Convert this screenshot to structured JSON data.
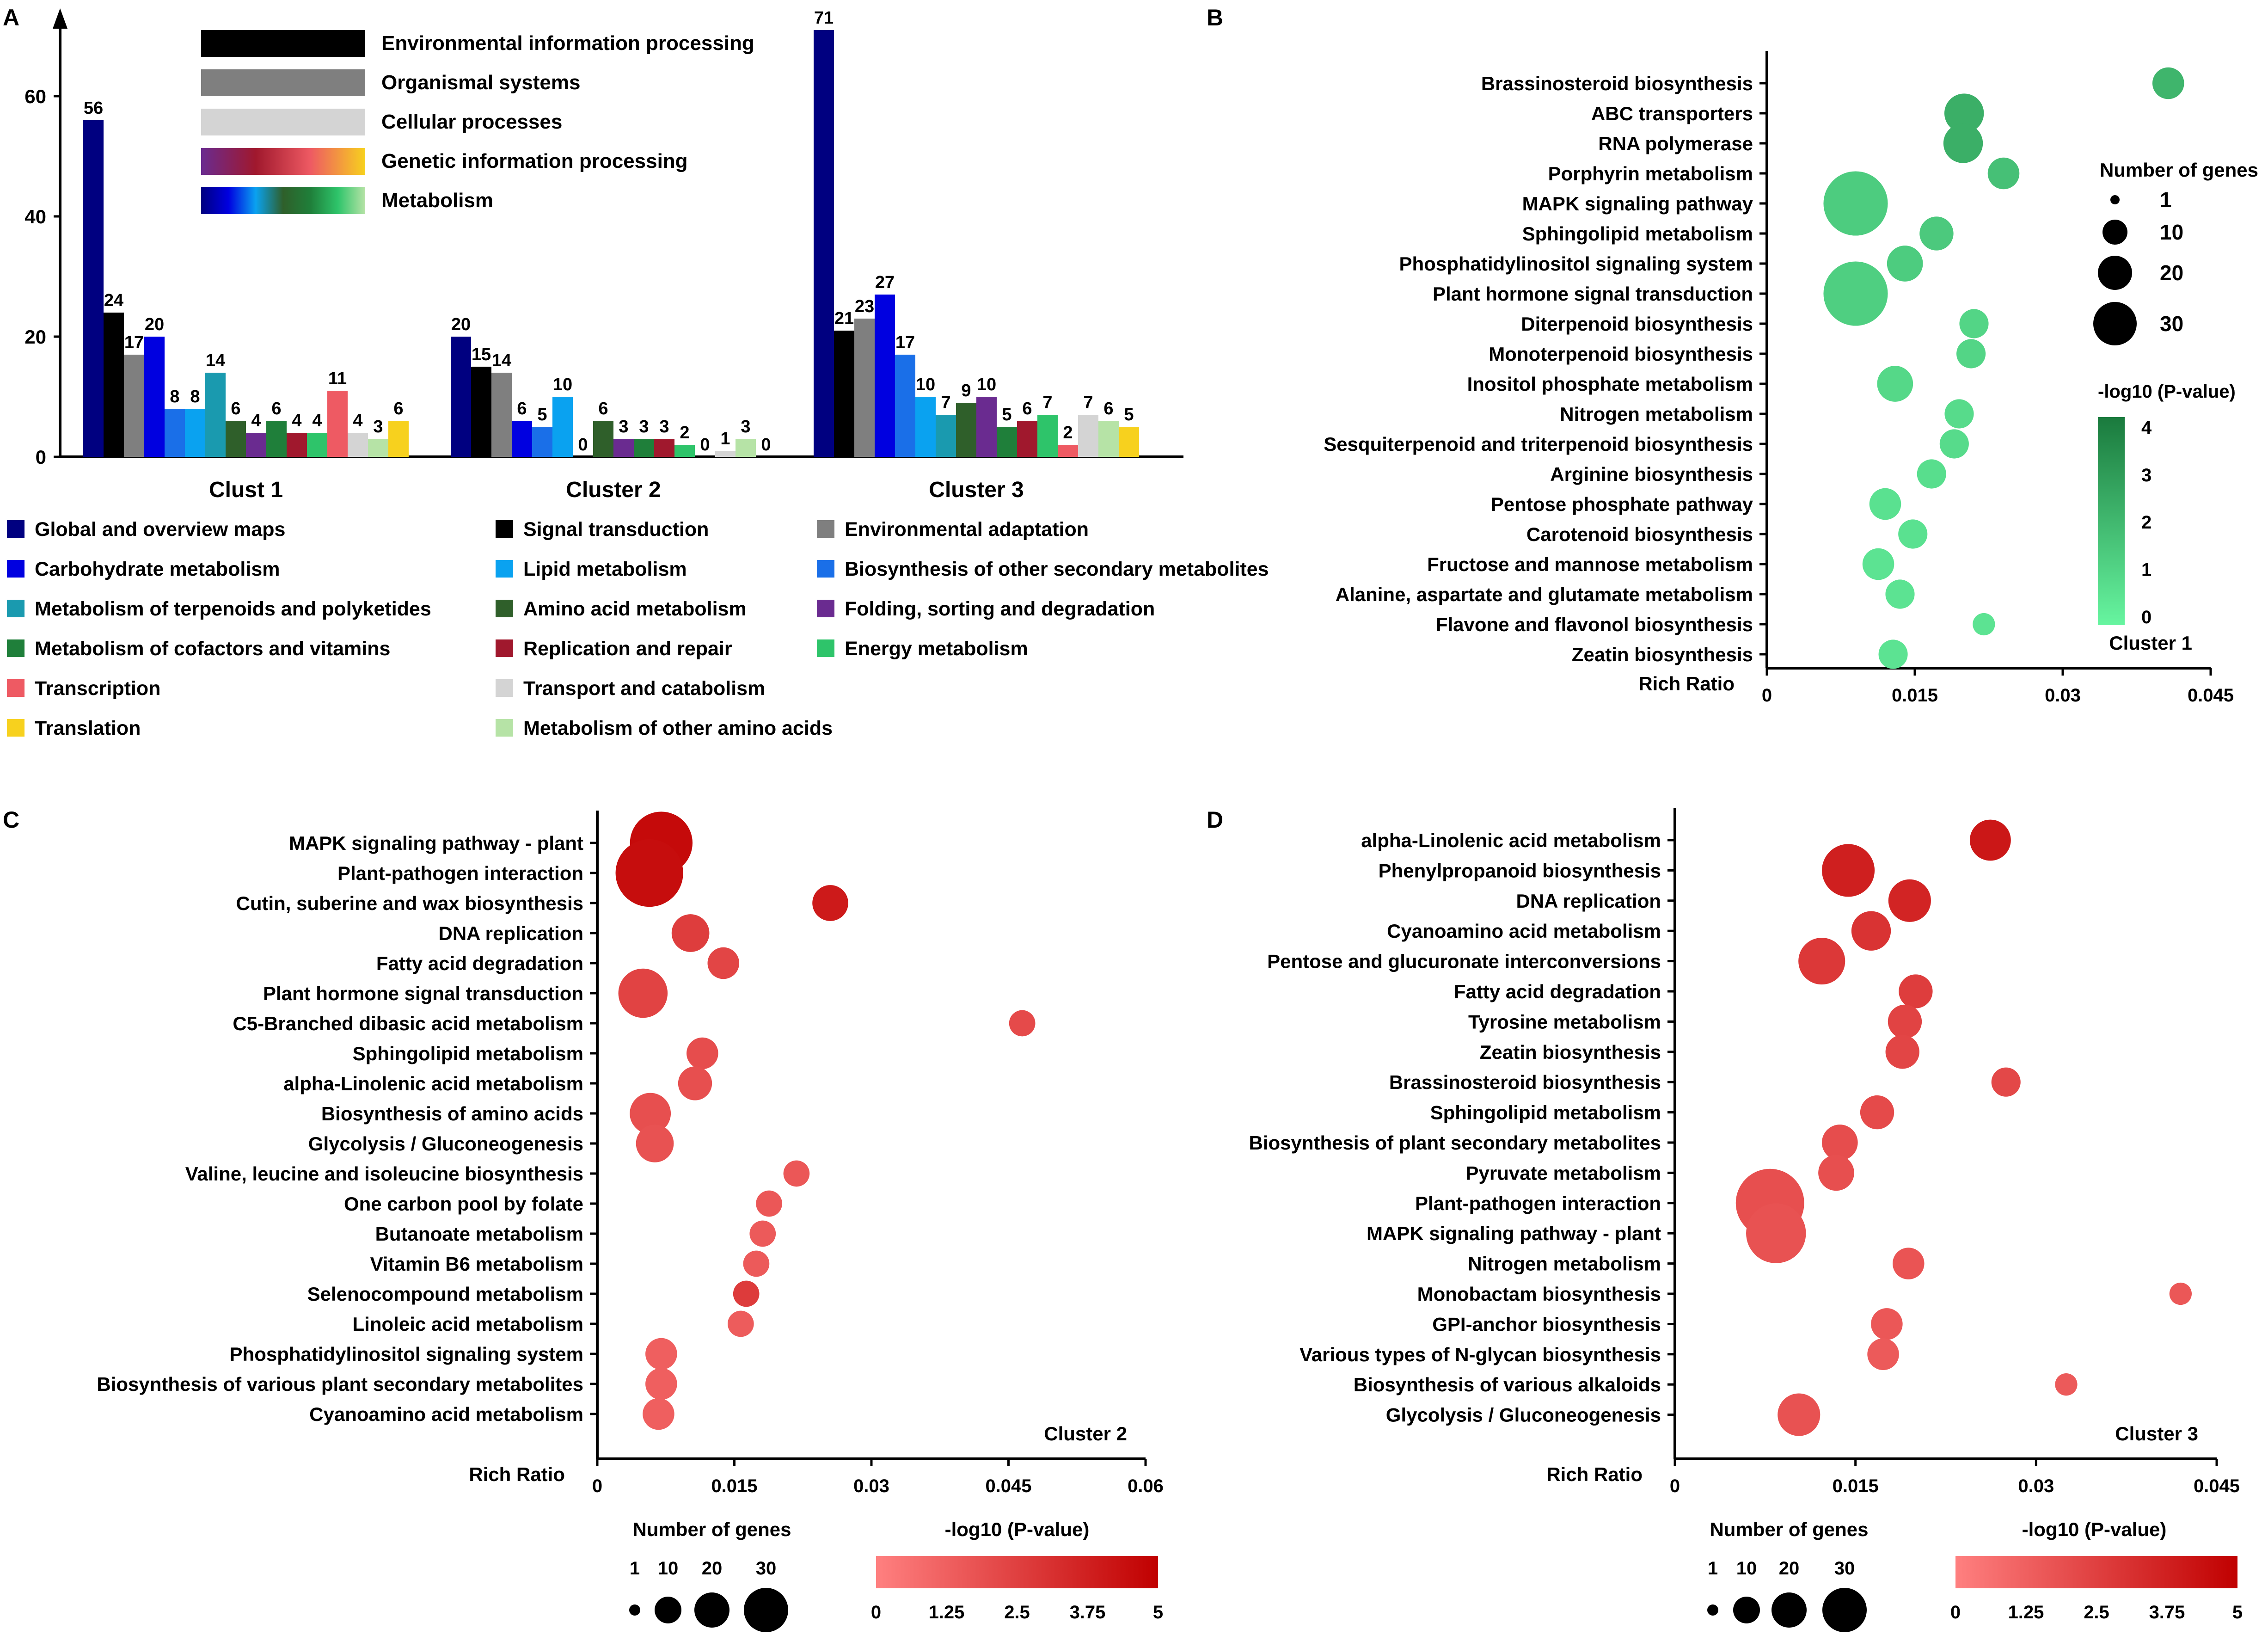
{
  "chart_data": [
    {
      "panel": "A",
      "type": "bar",
      "ylim": [
        0,
        72
      ],
      "yticks": [
        "0",
        "20",
        "40",
        "60"
      ],
      "categories": [
        "Clust 1",
        "Cluster 2",
        "Cluster 3"
      ],
      "series": [
        {
          "name": "Global and overview maps",
          "color": "#000080",
          "values": [
            56,
            20,
            71
          ]
        },
        {
          "name": "Signal transduction",
          "color": "#000000",
          "values": [
            24,
            15,
            21
          ]
        },
        {
          "name": "Environmental adaptation",
          "color": "#7f7f7f",
          "values": [
            17,
            14,
            23
          ]
        },
        {
          "name": "Carbohydrate metabolism",
          "color": "#0000e0",
          "values": [
            20,
            6,
            27
          ]
        },
        {
          "name": "Biosynthesis of other secondary metabolites",
          "color": "#1a6fe8",
          "values": [
            8,
            5,
            17
          ]
        },
        {
          "name": "Lipid metabolism",
          "color": "#0aa2f0",
          "values": [
            8,
            10,
            10
          ]
        },
        {
          "name": "Metabolism of terpenoids and polyketides",
          "color": "#1a9aaf",
          "values": [
            14,
            0,
            7
          ]
        },
        {
          "name": "Amino acid metabolism",
          "color": "#2f5f2a",
          "values": [
            6,
            6,
            9
          ]
        },
        {
          "name": "Folding, sorting and degradation",
          "color": "#6a2b90",
          "values": [
            4,
            3,
            10
          ]
        },
        {
          "name": "Metabolism of cofactors and vitamins",
          "color": "#1f7f3a",
          "values": [
            6,
            3,
            5
          ]
        },
        {
          "name": "Replication and repair",
          "color": "#a0182d",
          "values": [
            4,
            3,
            6
          ]
        },
        {
          "name": "Energy metabolism",
          "color": "#2ec46a",
          "values": [
            4,
            2,
            7
          ]
        },
        {
          "name": "Transcription",
          "color": "#ee5a63",
          "values": [
            11,
            0,
            2
          ]
        },
        {
          "name": "Transport and catabolism",
          "color": "#d4d4d4",
          "values": [
            4,
            1,
            7
          ]
        },
        {
          "name": "Metabolism of other amino acids",
          "color": "#b6e3a6",
          "values": [
            3,
            3,
            6
          ]
        },
        {
          "name": "Translation",
          "color": "#f7d11e",
          "values": [
            6,
            0,
            5
          ]
        }
      ],
      "inset_legend": [
        {
          "label": "Environmental information processing",
          "colors": [
            "#000000",
            "#000000"
          ]
        },
        {
          "label": "Organismal systems",
          "colors": [
            "#7f7f7f",
            "#7f7f7f"
          ]
        },
        {
          "label": "Cellular processes",
          "colors": [
            "#d4d4d4",
            "#d4d4d4"
          ]
        },
        {
          "label": "Genetic information processing",
          "colors": [
            "#6a2b90",
            "#a0182d",
            "#ee5a63",
            "#f7d11e"
          ]
        },
        {
          "label": "Metabolism",
          "colors": [
            "#000080",
            "#0000e0",
            "#0aa2f0",
            "#2f5f2a",
            "#1f7f3a",
            "#2ec46a",
            "#b6e3a6"
          ]
        }
      ],
      "bottom_legend_columns": [
        [
          "Global and overview maps",
          "Carbohydrate metabolism",
          "Metabolism of terpenoids and polyketides",
          "Metabolism of cofactors and vitamins",
          "Transcription",
          "Translation"
        ],
        [
          "Signal transduction",
          "Lipid metabolism",
          "Amino acid metabolism",
          "Replication and repair",
          "Transport and catabolism",
          "Metabolism of other amino acids"
        ],
        [
          "Environmental adaptation",
          "Biosynthesis of other secondary metabolites",
          "Folding, sorting and degradation",
          "Energy metabolism"
        ]
      ]
    },
    {
      "panel": "B",
      "type": "scatter",
      "label": "Cluster 1",
      "xlabel": "Rich Ratio",
      "xlim": [
        0,
        0.045
      ],
      "xticks": [
        "0",
        "0.015",
        "0.03",
        "0.045"
      ],
      "scale": "green",
      "color_scale": {
        "min": 0,
        "max": 4.2,
        "ticks": [
          "0",
          "1",
          "2",
          "3",
          "4"
        ],
        "colors": [
          "#67f5a0",
          "#1a7a3d"
        ]
      },
      "size_legend": {
        "title": "Number of genes",
        "values": [
          1,
          10,
          20,
          30
        ]
      },
      "color_title": "-log10 (P-value)",
      "points": [
        {
          "pathway": "Brassinosteroid biosynthesis",
          "x": 0.0407,
          "genes": 4,
          "p": 2.2
        },
        {
          "pathway": "ABC transporters",
          "x": 0.02,
          "genes": 8,
          "p": 2.4
        },
        {
          "pathway": "RNA polymerase",
          "x": 0.0199,
          "genes": 8,
          "p": 2.4
        },
        {
          "pathway": "Porphyrin metabolism",
          "x": 0.024,
          "genes": 4,
          "p": 1.8
        },
        {
          "pathway": "MAPK signaling pathway",
          "x": 0.009,
          "genes": 30,
          "p": 1.4
        },
        {
          "pathway": "Sphingolipid metabolism",
          "x": 0.0172,
          "genes": 5,
          "p": 1.5
        },
        {
          "pathway": "Phosphatidylinositol signaling system",
          "x": 0.014,
          "genes": 6,
          "p": 1.4
        },
        {
          "pathway": "Plant hormone signal transduction",
          "x": 0.009,
          "genes": 30,
          "p": 1.3
        },
        {
          "pathway": "Diterpenoid biosynthesis",
          "x": 0.021,
          "genes": 3,
          "p": 1.1
        },
        {
          "pathway": "Monoterpenoid biosynthesis",
          "x": 0.0207,
          "genes": 3,
          "p": 1.1
        },
        {
          "pathway": "Inositol phosphate metabolism",
          "x": 0.013,
          "genes": 6,
          "p": 1.0
        },
        {
          "pathway": "Nitrogen metabolism",
          "x": 0.0195,
          "genes": 3,
          "p": 0.9
        },
        {
          "pathway": "Sesquiterpenoid and triterpenoid biosynthesis",
          "x": 0.019,
          "genes": 3,
          "p": 0.9
        },
        {
          "pathway": "Arginine biosynthesis",
          "x": 0.0167,
          "genes": 3,
          "p": 0.8
        },
        {
          "pathway": "Pentose phosphate pathway",
          "x": 0.012,
          "genes": 4,
          "p": 0.7
        },
        {
          "pathway": "Carotenoid biosynthesis",
          "x": 0.0148,
          "genes": 3,
          "p": 0.7
        },
        {
          "pathway": "Fructose and mannose metabolism",
          "x": 0.0113,
          "genes": 4,
          "p": 0.6
        },
        {
          "pathway": "Alanine, aspartate and glutamate metabolism",
          "x": 0.0135,
          "genes": 3,
          "p": 0.6
        },
        {
          "pathway": "Flavone and flavonol biosynthesis",
          "x": 0.022,
          "genes": 1,
          "p": 0.6
        },
        {
          "pathway": "Zeatin biosynthesis",
          "x": 0.0128,
          "genes": 3,
          "p": 0.6
        }
      ]
    },
    {
      "panel": "C",
      "type": "scatter",
      "label": "Cluster 2",
      "xlabel": "Rich Ratio",
      "xlim": [
        0,
        0.06
      ],
      "xticks": [
        "0",
        "0.015",
        "0.03",
        "0.045",
        "0.06"
      ],
      "scale": "red",
      "color_scale": {
        "min": 0,
        "max": 5,
        "ticks": [
          "0",
          "1.25",
          "2.5",
          "3.75",
          "5"
        ],
        "colors": [
          "#ff8080",
          "#c00000"
        ]
      },
      "size_legend": {
        "title": "Number of genes",
        "values": [
          1,
          10,
          20,
          30
        ]
      },
      "color_title": "-log10 (P-value)",
      "points": [
        {
          "pathway": "MAPK signaling pathway - plant",
          "x": 0.007,
          "genes": 28,
          "p": 4.6
        },
        {
          "pathway": "Plant-pathogen interaction",
          "x": 0.0057,
          "genes": 34,
          "p": 4.5
        },
        {
          "pathway": "Cutin, suberine and wax biosynthesis",
          "x": 0.0255,
          "genes": 6,
          "p": 4.0
        },
        {
          "pathway": "DNA replication",
          "x": 0.0102,
          "genes": 7,
          "p": 2.6
        },
        {
          "pathway": "Fatty acid degradation",
          "x": 0.0138,
          "genes": 4,
          "p": 2.3
        },
        {
          "pathway": "Plant hormone signal transduction",
          "x": 0.005,
          "genes": 15,
          "p": 2.4
        },
        {
          "pathway": "C5-Branched dibasic acid metabolism",
          "x": 0.0465,
          "genes": 2,
          "p": 2.1
        },
        {
          "pathway": "Sphingolipid metabolism",
          "x": 0.0115,
          "genes": 4,
          "p": 2.0
        },
        {
          "pathway": "alpha-Linolenic acid metabolism",
          "x": 0.0107,
          "genes": 5,
          "p": 1.9
        },
        {
          "pathway": "Biosynthesis of amino acids",
          "x": 0.0058,
          "genes": 9,
          "p": 1.9
        },
        {
          "pathway": "Glycolysis / Gluconeogenesis",
          "x": 0.0063,
          "genes": 7,
          "p": 1.8
        },
        {
          "pathway": "Valine, leucine and isoleucine biosynthesis",
          "x": 0.0218,
          "genes": 2,
          "p": 1.6
        },
        {
          "pathway": "One carbon pool by folate",
          "x": 0.0188,
          "genes": 2,
          "p": 1.6
        },
        {
          "pathway": "Butanoate metabolism",
          "x": 0.0181,
          "genes": 2,
          "p": 1.5
        },
        {
          "pathway": "Vitamin B6 metabolism",
          "x": 0.0174,
          "genes": 2,
          "p": 1.5
        },
        {
          "pathway": "Selenocompound metabolism",
          "x": 0.0163,
          "genes": 2,
          "p": 2.7
        },
        {
          "pathway": "Linoleic acid metabolism",
          "x": 0.0157,
          "genes": 2,
          "p": 1.4
        },
        {
          "pathway": "Phosphatidylinositol signaling system",
          "x": 0.007,
          "genes": 4,
          "p": 1.3
        },
        {
          "pathway": "Biosynthesis of various plant secondary metabolites",
          "x": 0.007,
          "genes": 4,
          "p": 1.3
        },
        {
          "pathway": "Cyanoamino acid metabolism",
          "x": 0.0067,
          "genes": 4,
          "p": 1.3
        }
      ]
    },
    {
      "panel": "D",
      "type": "scatter",
      "label": "Cluster 3",
      "xlabel": "Rich Ratio",
      "xlim": [
        0,
        0.045
      ],
      "xticks": [
        "0",
        "0.015",
        "0.03",
        "0.045"
      ],
      "scale": "red",
      "color_scale": {
        "min": 0,
        "max": 5,
        "ticks": [
          "0",
          "1.25",
          "2.5",
          "3.75",
          "5"
        ],
        "colors": [
          "#ff8080",
          "#c00000"
        ]
      },
      "size_legend": {
        "title": "Number of genes",
        "values": [
          1,
          10,
          20,
          30
        ]
      },
      "color_title": "-log10 (P-value)",
      "points": [
        {
          "pathway": "alpha-Linolenic acid metabolism",
          "x": 0.0262,
          "genes": 9,
          "p": 4.1
        },
        {
          "pathway": "Phenylpropanoid biosynthesis",
          "x": 0.0144,
          "genes": 18,
          "p": 3.8
        },
        {
          "pathway": "DNA replication",
          "x": 0.0195,
          "genes": 10,
          "p": 3.6
        },
        {
          "pathway": "Cyanoamino acid metabolism",
          "x": 0.0163,
          "genes": 8,
          "p": 3.0
        },
        {
          "pathway": "Pentose and glucuronate interconversions",
          "x": 0.0122,
          "genes": 13,
          "p": 2.8
        },
        {
          "pathway": "Fatty acid degradation",
          "x": 0.02,
          "genes": 5,
          "p": 2.6
        },
        {
          "pathway": "Tyrosine metabolism",
          "x": 0.0191,
          "genes": 5,
          "p": 2.4
        },
        {
          "pathway": "Zeatin biosynthesis",
          "x": 0.0189,
          "genes": 5,
          "p": 2.3
        },
        {
          "pathway": "Brassinosteroid biosynthesis",
          "x": 0.0275,
          "genes": 3,
          "p": 2.2
        },
        {
          "pathway": "Sphingolipid metabolism",
          "x": 0.0168,
          "genes": 5,
          "p": 2.1
        },
        {
          "pathway": "Biosynthesis of plant secondary metabolites",
          "x": 0.0137,
          "genes": 6,
          "p": 2.0
        },
        {
          "pathway": "Pyruvate metabolism",
          "x": 0.0134,
          "genes": 6,
          "p": 1.9
        },
        {
          "pathway": "Plant-pathogen interaction",
          "x": 0.0079,
          "genes": 35,
          "p": 1.9
        },
        {
          "pathway": "MAPK signaling pathway - plant",
          "x": 0.0084,
          "genes": 25,
          "p": 1.8
        },
        {
          "pathway": "Nitrogen metabolism",
          "x": 0.0194,
          "genes": 4,
          "p": 1.7
        },
        {
          "pathway": "Monobactam biosynthesis",
          "x": 0.042,
          "genes": 1,
          "p": 1.6
        },
        {
          "pathway": "GPI-anchor biosynthesis",
          "x": 0.0176,
          "genes": 4,
          "p": 1.6
        },
        {
          "pathway": "Various types of N-glycan biosynthesis",
          "x": 0.0173,
          "genes": 4,
          "p": 1.5
        },
        {
          "pathway": "Biosynthesis of various alkaloids",
          "x": 0.0325,
          "genes": 1,
          "p": 1.5
        },
        {
          "pathway": "Glycolysis / Gluconeogenesis",
          "x": 0.0103,
          "genes": 10,
          "p": 1.8
        }
      ]
    }
  ]
}
